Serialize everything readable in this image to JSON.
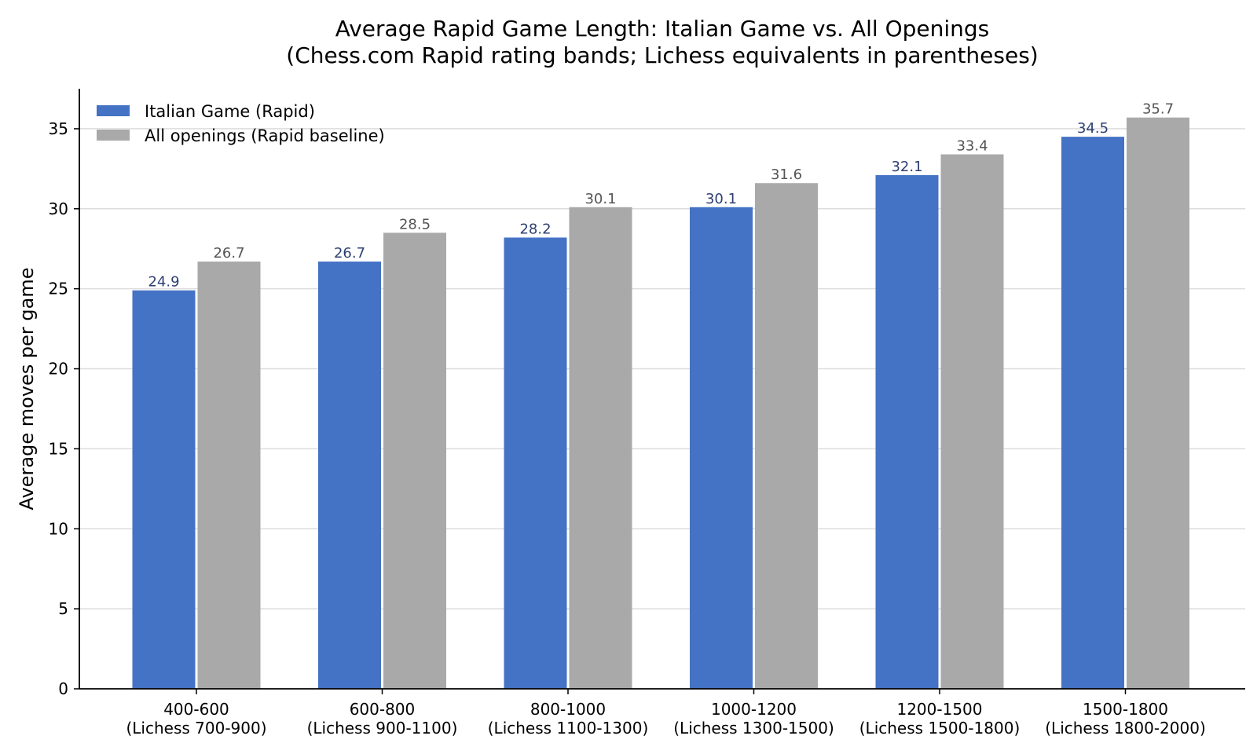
{
  "chart_data": {
    "type": "bar",
    "title": "Average Rapid Game Length: Italian Game vs. All Openings",
    "subtitle": "(Chess.com Rapid rating bands; Lichess equivalents in parentheses)",
    "xlabel": "",
    "ylabel": "Average moves per game",
    "ylim": [
      0,
      37.5
    ],
    "yticks": [
      0,
      5,
      10,
      15,
      20,
      25,
      30,
      35
    ],
    "grid": "horizontal",
    "legend_position": "top-left",
    "categories": [
      [
        "400-600",
        "(Lichess 700-900)"
      ],
      [
        "600-800",
        "(Lichess 900-1100)"
      ],
      [
        "800-1000",
        "(Lichess 1100-1300)"
      ],
      [
        "1000-1200",
        "(Lichess 1300-1500)"
      ],
      [
        "1200-1500",
        "(Lichess 1500-1800)"
      ],
      [
        "1500-1800",
        "(Lichess 1800-2000)"
      ]
    ],
    "series": [
      {
        "name": "Italian Game (Rapid)",
        "color": "#4472c4",
        "label_color": "#2e3f73",
        "values": [
          24.9,
          26.7,
          28.2,
          30.1,
          32.1,
          34.5
        ]
      },
      {
        "name": "All openings (Rapid baseline)",
        "color": "#a9a9a9",
        "label_color": "#555555",
        "values": [
          26.7,
          28.5,
          30.1,
          31.6,
          33.4,
          35.7
        ]
      }
    ]
  }
}
